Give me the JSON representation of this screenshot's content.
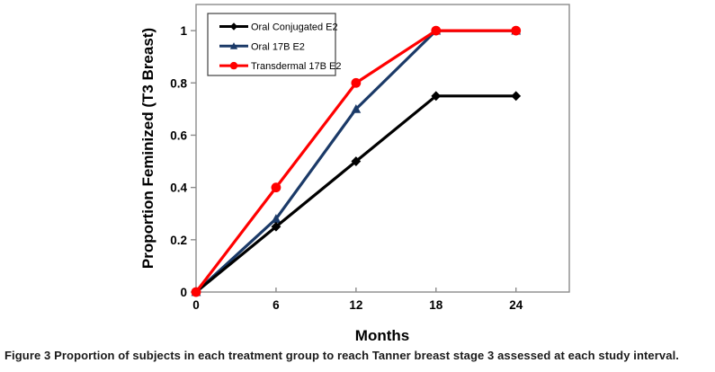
{
  "figure": {
    "caption_label": "Figure 3",
    "caption_text": "Proportion of subjects in each treatment group to reach Tanner breast stage 3 assessed at each study interval."
  },
  "chart_data": {
    "type": "line",
    "title": "",
    "xlabel": "Months",
    "ylabel": "Proportion Feminized (T3 Breast)",
    "x": [
      0,
      6,
      12,
      18,
      24
    ],
    "series": [
      {
        "name": "Oral Conjugated E2",
        "color": "#000000",
        "marker": "diamond",
        "values": [
          0,
          0.25,
          0.5,
          0.75,
          0.75
        ],
        "z": 2
      },
      {
        "name": "Oral 17B E2",
        "color": "#1B3A68",
        "marker": "triangle",
        "values": [
          0,
          0.28,
          0.7,
          1,
          1
        ],
        "z": 1
      },
      {
        "name": "Transdermal 17B E2",
        "color": "#FF0000",
        "marker": "circle",
        "values": [
          0,
          0.4,
          0.8,
          1,
          1
        ],
        "z": 3
      }
    ],
    "xticks": {
      "values": [
        0,
        6,
        12,
        18,
        24
      ],
      "labels": [
        "0",
        "6",
        "12",
        "18",
        "24"
      ]
    },
    "yticks": {
      "values": [
        0,
        0.2,
        0.4,
        0.6,
        0.8,
        1
      ],
      "labels": [
        "0",
        "0.2",
        "0.4",
        "0.6",
        "0.8",
        "1"
      ]
    },
    "xlim": [
      0,
      28
    ],
    "ylim": [
      0,
      1.1
    ],
    "grid": false,
    "legend_position": "top-left-inside",
    "colors": {
      "axis": "#8C8C8C",
      "plot_border": "#8C8C8C",
      "legend_border": "#3F3F3F",
      "background": "#FFFFFF"
    }
  }
}
